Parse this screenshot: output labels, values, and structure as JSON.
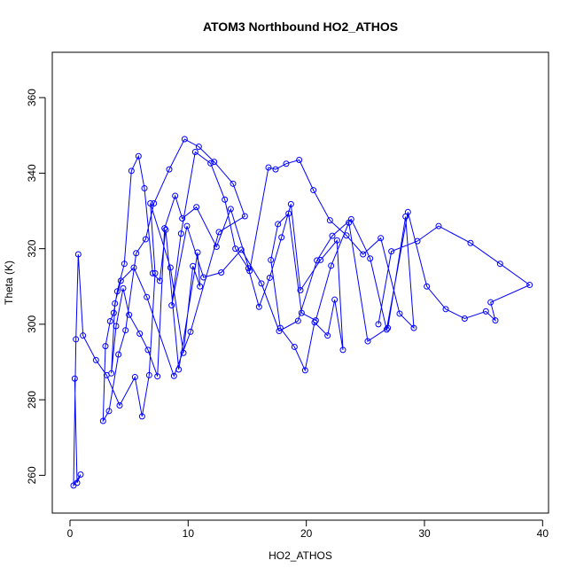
{
  "chart_data": {
    "type": "line",
    "title": "ATOM3 Northbound HO2_ATHOS",
    "xlabel": "HO2_ATHOS",
    "ylabel": "Theta (K)",
    "xlim": [
      -1.5,
      40.5
    ],
    "ylim": [
      250,
      372
    ],
    "x_ticks": [
      "0",
      "10",
      "20",
      "30",
      "40"
    ],
    "y_ticks": [
      "260",
      "280",
      "300",
      "320",
      "340",
      "360"
    ],
    "grid": false,
    "legend": "none",
    "marker": "open-circle",
    "color": "#0000ff",
    "series": [
      {
        "x": [
          0.4,
          0.6,
          0.9,
          0.3,
          0.5,
          0.7,
          1.1,
          2.2,
          3.1,
          4.2,
          5.5,
          6.1,
          6.7,
          7.2,
          6.8,
          8.5,
          9.6,
          10.4,
          11.0,
          10.8,
          9.2,
          8.1,
          7.6,
          7.0,
          6.3,
          5.8,
          5.2,
          4.6,
          4.0,
          3.7,
          3.4,
          3.0,
          2.8,
          3.3,
          4.1,
          4.7,
          5.6,
          6.4,
          7.1,
          8.4,
          9.7,
          10.9,
          12.2,
          13.8,
          14.8,
          12.6,
          10.2,
          8.8,
          6.5,
          5.4,
          4.3,
          3.8,
          3.5,
          3.9,
          4.5,
          5.0,
          5.9,
          6.6,
          7.4,
          8.0,
          8.9,
          9.5,
          10.7,
          12.4,
          13.6,
          15.2,
          16.8,
          17.4,
          18.3,
          19.4,
          20.6,
          22.0,
          23.4,
          24.8,
          26.3,
          27.9,
          29.1,
          28.4,
          26.9,
          25.2,
          23.6,
          22.1,
          20.8,
          19.6,
          18.5,
          17.6,
          17.0,
          17.8,
          19.0,
          19.9,
          20.7,
          21.8,
          22.4,
          23.1,
          22.6,
          21.2,
          19.5,
          18.7,
          17.9,
          16.9,
          16.0,
          15.1,
          14.0,
          13.1,
          11.9,
          10.6,
          9.4,
          8.6,
          9.9,
          11.3,
          12.8,
          14.5,
          16.2,
          17.7,
          19.3,
          20.9,
          22.2,
          23.8,
          25.4,
          26.8,
          28.6,
          30.2,
          31.8,
          33.4,
          35.2,
          36.0,
          35.6,
          38.9,
          36.4,
          33.9,
          31.2,
          29.4,
          27.2,
          26.1
        ],
        "y": [
          285.6,
          258.0,
          260.2,
          257.3,
          296.0,
          318.5,
          297.0,
          290.5,
          286.5,
          278.5,
          286.0,
          275.6,
          286.5,
          313.5,
          332.0,
          315.0,
          292.4,
          315.4,
          310.0,
          319.0,
          288.0,
          325.0,
          311.5,
          313.5,
          336.0,
          344.5,
          340.6,
          316.0,
          308.7,
          303.0,
          300.8,
          294.2,
          274.4,
          277.0,
          292.0,
          298.4,
          318.8,
          322.5,
          332.0,
          341.0,
          349.0,
          347.0,
          343.0,
          337.2,
          328.6,
          324.4,
          298.0,
          286.3,
          307.2,
          315.0,
          311.5,
          305.5,
          287.0,
          299.5,
          309.5,
          302.5,
          297.5,
          293.2,
          286.2,
          325.4,
          334.0,
          328.0,
          331.0,
          320.5,
          330.5,
          314.1,
          341.5,
          341.0,
          342.5,
          343.5,
          335.5,
          327.5,
          323.5,
          318.5,
          322.8,
          302.8,
          299.0,
          328.5,
          299.0,
          295.5,
          326.9,
          315.5,
          301.0,
          303.0,
          329.3,
          326.5,
          317.0,
          299.0,
          294.0,
          287.8,
          300.5,
          297.0,
          306.5,
          293.2,
          322.2,
          317.0,
          309.0,
          331.8,
          323.0,
          312.3,
          304.6,
          314.8,
          320.0,
          333.0,
          342.6,
          345.6,
          324.0,
          305.0,
          326.0,
          312.4,
          313.7,
          319.7,
          310.8,
          298.2,
          300.9,
          316.9,
          323.4,
          327.8,
          317.4,
          298.6,
          329.7,
          310.0,
          304.0,
          301.5,
          303.4,
          301.0,
          305.8,
          310.4,
          316.0,
          321.5,
          326.0,
          322.0,
          319.3,
          300.0
        ]
      }
    ]
  }
}
